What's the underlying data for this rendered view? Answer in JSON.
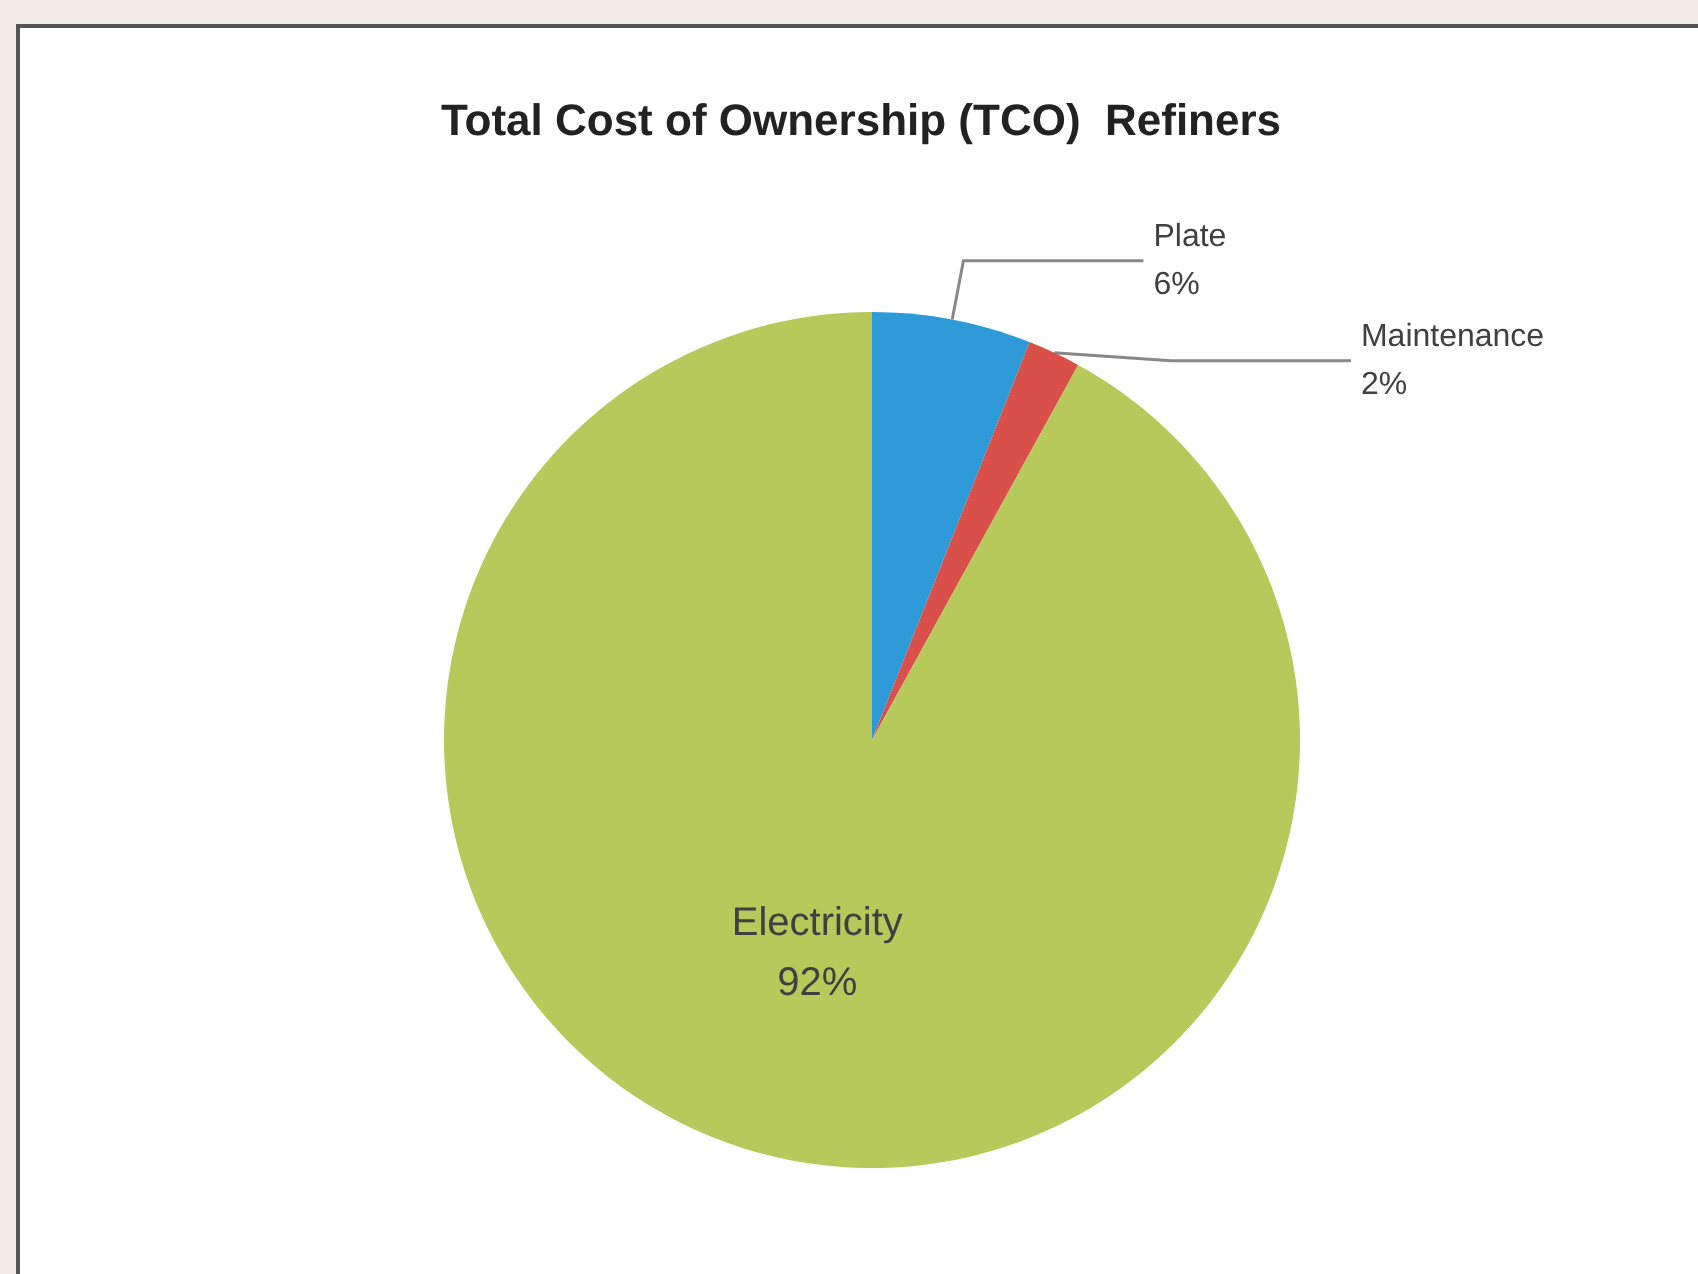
{
  "chart_data": {
    "type": "pie",
    "title": "Total Cost of Ownership (TCO)  Refiners",
    "categories": [
      "Plate",
      "Maintenance",
      "Electricity"
    ],
    "values": [
      6,
      2,
      92
    ],
    "colors": [
      "#2e9ad8",
      "#d9504a",
      "#b6c95a"
    ],
    "value_labels": [
      "6%",
      "2%",
      "92%"
    ],
    "legend": false
  }
}
